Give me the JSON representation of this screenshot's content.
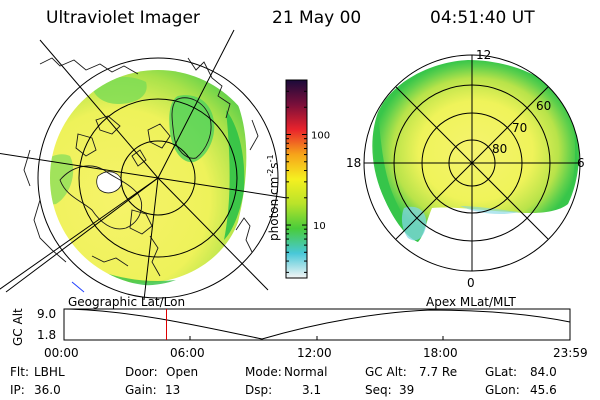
{
  "header": {
    "instrument": "Ultraviolet Imager",
    "date": "21 May 00",
    "time": "04:51:40 UT"
  },
  "colorbar": {
    "label_parts": [
      "photon cm",
      "-2",
      "s",
      "-1"
    ],
    "tick_100": "100",
    "tick_10": "10",
    "log_min": 2.6,
    "log_max": 400,
    "stops": [
      "#f5f5f5",
      "#48c8d8",
      "#49cc3a",
      "#b9e32a",
      "#f5f020",
      "#f6a31a",
      "#e9232c",
      "#7b0f3a",
      "#1a0a3a"
    ]
  },
  "geo_map": {
    "caption": "Geographic Lat/Lon",
    "colors": {
      "ocean_yellow": "#f4f25a",
      "land_green": "#6ed85a",
      "rim_green": "#35c646",
      "coast": "#1a1a1a"
    }
  },
  "mag_map": {
    "caption": "Apex MLat/MLT",
    "lat_labels": [
      "60",
      "70",
      "80"
    ],
    "mlt_labels": {
      "top": "12",
      "left": "18",
      "right": "6",
      "bottom": "0"
    }
  },
  "alt_plot": {
    "ylabel": "GC Alt",
    "y_ticks": [
      "9.0",
      "1.8"
    ],
    "x_ticks": [
      "00:00",
      "06:00",
      "12:00",
      "18:00",
      "23:59"
    ],
    "current_time_hours": 4.86,
    "marker_color": "#dd0000"
  },
  "status": {
    "filter": {
      "label": "Flt:",
      "value": "LBHL"
    },
    "ip": {
      "label": "IP:",
      "value": "36.0"
    },
    "door": {
      "label": "Door:",
      "value": "Open"
    },
    "gain": {
      "label": "Gain:",
      "value": "13"
    },
    "mode": {
      "label": "Mode:",
      "value": "Normal"
    },
    "dsp": {
      "label": "Dsp:",
      "value": "3.1"
    },
    "gc_alt": {
      "label": "GC Alt:",
      "value": "7.7 Re"
    },
    "seq": {
      "label": "Seq:",
      "value": "39"
    },
    "glat": {
      "label": "GLat:",
      "value": "84.0"
    },
    "glon": {
      "label": "GLon:",
      "value": "45.6"
    }
  }
}
